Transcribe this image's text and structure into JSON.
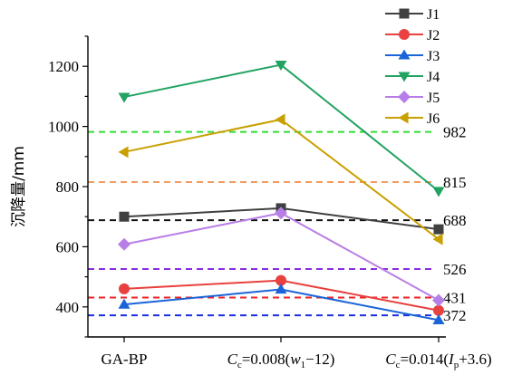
{
  "chart_data": {
    "type": "line",
    "ylabel": "沉降量/mm",
    "ylim": [
      300,
      1300
    ],
    "yticks": [
      400,
      600,
      800,
      1000,
      1200
    ],
    "categories": [
      "GA-BP",
      "Cc=0.008(w1−12)",
      "Cc=0.014(Ip+3.6)"
    ],
    "category_labels": [
      {
        "parts": [
          {
            "t": "GA-BP"
          }
        ]
      },
      {
        "parts": [
          {
            "t": "C",
            "style": "italic"
          },
          {
            "t": "c",
            "sub": true
          },
          {
            "t": "=0.008("
          },
          {
            "t": "w",
            "style": "italic"
          },
          {
            "t": "1",
            "sub": true
          },
          {
            "t": "−12)"
          }
        ]
      },
      {
        "parts": [
          {
            "t": "C",
            "style": "italic"
          },
          {
            "t": "c",
            "sub": true
          },
          {
            "t": "=0.014("
          },
          {
            "t": "I",
            "style": "italic"
          },
          {
            "t": "p",
            "sub": true
          },
          {
            "t": "+3.6)"
          }
        ]
      }
    ],
    "series": [
      {
        "name": "J1",
        "color": "#404040",
        "marker": "square",
        "values": [
          700,
          728,
          658
        ]
      },
      {
        "name": "J2",
        "color": "#e8413f",
        "marker": "circle",
        "values": [
          460,
          488,
          388
        ]
      },
      {
        "name": "J3",
        "color": "#1b64d8",
        "marker": "triangle-up",
        "values": [
          408,
          458,
          356
        ]
      },
      {
        "name": "J4",
        "color": "#22a361",
        "marker": "triangle-down",
        "values": [
          1098,
          1205,
          785
        ]
      },
      {
        "name": "J5",
        "color": "#b87ee8",
        "marker": "diamond",
        "values": [
          608,
          712,
          422
        ]
      },
      {
        "name": "J6",
        "color": "#c9a000",
        "marker": "triangle-left",
        "values": [
          915,
          1023,
          625
        ]
      }
    ],
    "reference_lines": [
      {
        "value": 982,
        "label": "982",
        "color": "#33dd33"
      },
      {
        "value": 815,
        "label": "815",
        "color": "#f29b5c"
      },
      {
        "value": 688,
        "label": "688",
        "color": "#111111"
      },
      {
        "value": 526,
        "label": "526",
        "color": "#8a2be2"
      },
      {
        "value": 431,
        "label": "431",
        "color": "#ee2222"
      },
      {
        "value": 372,
        "label": "372",
        "color": "#1a2ee0"
      }
    ],
    "legend_position": "top-right",
    "grid": false
  }
}
